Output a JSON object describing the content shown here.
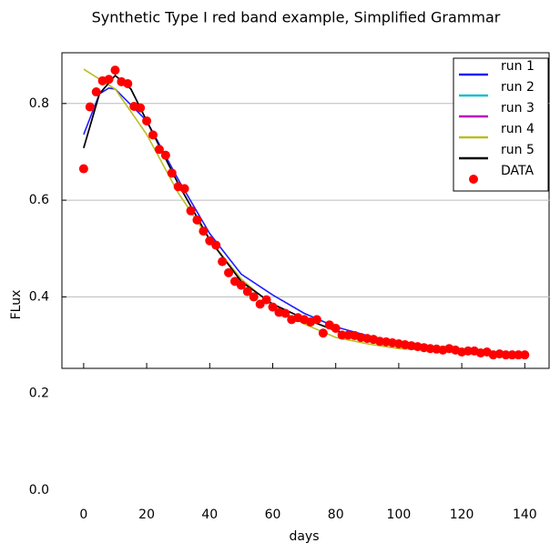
{
  "chart_data": {
    "type": "line",
    "title": "Synthetic Type I red band example, Simplified Grammar",
    "xlabel": "days",
    "ylabel": "FLux",
    "xlim": [
      -6.9,
      148
    ],
    "ylim": [
      0,
      0.905
    ],
    "xticks": [
      0,
      20,
      40,
      60,
      80,
      100,
      120,
      140
    ],
    "yticks": [
      {
        "value": 0,
        "label": "0.0"
      },
      0.2,
      0.4,
      0.6,
      0.8
    ],
    "grid": true,
    "legend": "upper right",
    "series": [
      {
        "name": "run 1",
        "color": "#1f1fff",
        "x": [
          0,
          5,
          8,
          10,
          20,
          30,
          40,
          50,
          60,
          70,
          80,
          90,
          100,
          110,
          120,
          130,
          140
        ],
        "values": [
          0.736,
          0.82,
          0.832,
          0.83,
          0.764,
          0.643,
          0.531,
          0.447,
          0.404,
          0.366,
          0.338,
          0.32,
          0.305,
          0.295,
          0.288,
          0.284,
          0.282
        ]
      },
      {
        "name": "run 2",
        "color": "#17becf",
        "x": [
          0,
          5,
          10,
          15,
          20,
          30,
          40,
          50,
          60,
          70,
          80,
          90,
          100,
          110,
          120,
          130,
          140
        ],
        "values": [
          0.708,
          0.82,
          0.858,
          0.83,
          0.764,
          0.634,
          0.518,
          0.432,
          0.385,
          0.355,
          0.33,
          0.31,
          0.3,
          0.292,
          0.287,
          0.283,
          0.281
        ]
      },
      {
        "name": "run 3",
        "color": "#bf00bf",
        "x": [
          0,
          5,
          10,
          15,
          20,
          30,
          40,
          50,
          60,
          70,
          80,
          90,
          100,
          110,
          120,
          130,
          140
        ],
        "values": [
          0.708,
          0.82,
          0.858,
          0.83,
          0.764,
          0.634,
          0.518,
          0.432,
          0.385,
          0.355,
          0.33,
          0.31,
          0.3,
          0.292,
          0.287,
          0.283,
          0.281
        ]
      },
      {
        "name": "run 4",
        "color": "#bcbd22",
        "x": [
          0,
          10,
          20,
          30,
          40,
          50,
          60,
          70,
          80,
          90,
          100,
          110,
          120,
          130,
          140
        ],
        "values": [
          0.871,
          0.83,
          0.736,
          0.615,
          0.518,
          0.437,
          0.381,
          0.344,
          0.316,
          0.303,
          0.293,
          0.29,
          0.286,
          0.282,
          0.28
        ]
      },
      {
        "name": "run 5",
        "color": "#000000",
        "x": [
          0,
          5,
          10,
          15,
          20,
          30,
          40,
          50,
          60,
          70,
          80,
          90,
          100,
          110,
          120,
          130,
          140
        ],
        "values": [
          0.708,
          0.82,
          0.858,
          0.83,
          0.764,
          0.634,
          0.518,
          0.432,
          0.385,
          0.355,
          0.33,
          0.31,
          0.3,
          0.292,
          0.287,
          0.283,
          0.281
        ]
      },
      {
        "name": "DATA",
        "color": "#ff0000",
        "marker": "o",
        "x": [
          0,
          2,
          4,
          6,
          8,
          10,
          12,
          14,
          16,
          18,
          20,
          22,
          24,
          26,
          28,
          30,
          32,
          34,
          36,
          38,
          40,
          42,
          44,
          46,
          48,
          50,
          52,
          54,
          56,
          58,
          60,
          62,
          64,
          66,
          68,
          70,
          72,
          74,
          76,
          78,
          80,
          82,
          84,
          86,
          88,
          90,
          92,
          94,
          96,
          98,
          100,
          102,
          104,
          106,
          108,
          110,
          112,
          114,
          116,
          118,
          120,
          122,
          124,
          126,
          128,
          130,
          132,
          134,
          136,
          138,
          140
        ],
        "values": [
          0.665,
          0.793,
          0.824,
          0.847,
          0.85,
          0.869,
          0.845,
          0.841,
          0.794,
          0.791,
          0.764,
          0.735,
          0.705,
          0.693,
          0.656,
          0.628,
          0.624,
          0.578,
          0.559,
          0.536,
          0.516,
          0.507,
          0.473,
          0.45,
          0.432,
          0.424,
          0.411,
          0.4,
          0.385,
          0.394,
          0.379,
          0.368,
          0.366,
          0.353,
          0.357,
          0.353,
          0.348,
          0.353,
          0.325,
          0.342,
          0.335,
          0.321,
          0.321,
          0.32,
          0.316,
          0.314,
          0.312,
          0.308,
          0.307,
          0.305,
          0.303,
          0.301,
          0.299,
          0.297,
          0.295,
          0.293,
          0.292,
          0.29,
          0.293,
          0.29,
          0.286,
          0.288,
          0.288,
          0.284,
          0.286,
          0.28,
          0.282,
          0.28,
          0.28,
          0.28,
          0.28
        ]
      }
    ]
  }
}
